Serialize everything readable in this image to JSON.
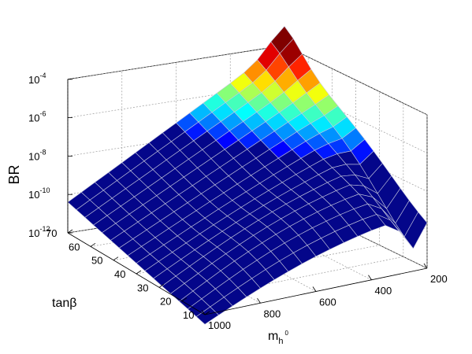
{
  "chart_data": {
    "type": "surface",
    "title": "",
    "zlabel": "BR",
    "ylabel": "tanβ",
    "xlabel_main": "m",
    "xlabel_sub": "h",
    "xlabel_sup": "0",
    "z_scale": "log",
    "z_range_exp": [
      -12,
      -4
    ],
    "z_ticks": [
      {
        "base": "10",
        "exp": "-4"
      },
      {
        "base": "10",
        "exp": "-6"
      },
      {
        "base": "10",
        "exp": "-8"
      },
      {
        "base": "10",
        "exp": "-10"
      },
      {
        "base": "10",
        "exp": "-12"
      }
    ],
    "z_tick_values": [
      -4,
      -6,
      -8,
      -10,
      -12
    ],
    "x_range": [
      200,
      1000
    ],
    "x_ticks": [
      "1000",
      "800",
      "600",
      "400",
      "200"
    ],
    "x_tick_values": [
      1000,
      800,
      600,
      400,
      200
    ],
    "y_range": [
      10,
      70
    ],
    "y_ticks": [
      "10",
      "20",
      "30",
      "40",
      "50",
      "60",
      "70"
    ],
    "y_tick_values": [
      10,
      20,
      30,
      40,
      50,
      60,
      70
    ],
    "grid": true,
    "colormap": "jet",
    "corner_values_log10": {
      "m1000_tb10": -12.5,
      "m1000_tb70": -10.4,
      "m200_tb10": -8.9,
      "m200_tb70": -3.9
    }
  }
}
